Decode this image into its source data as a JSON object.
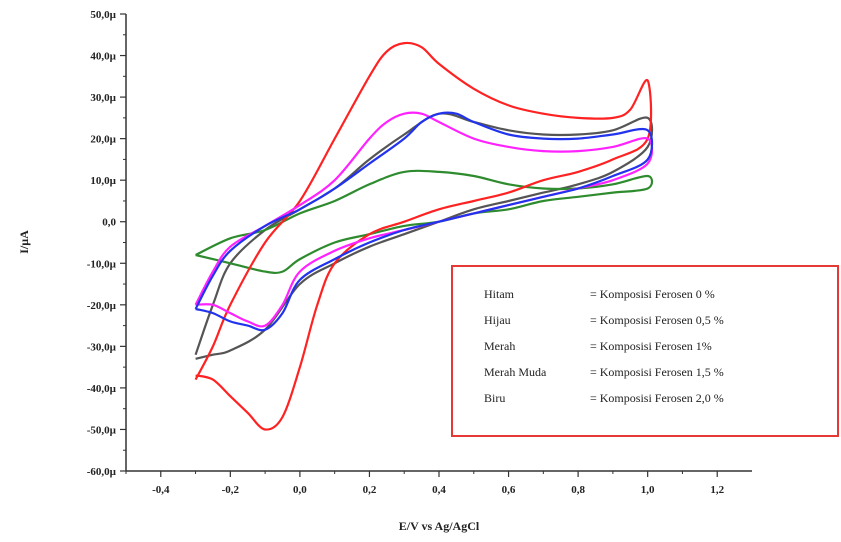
{
  "chart_data": {
    "type": "line",
    "title": "",
    "xlabel": "E/V vs Ag/AgCl",
    "ylabel": "I/µA",
    "xlim": [
      -0.5,
      1.3
    ],
    "ylim": [
      -60,
      50
    ],
    "x_ticks": [
      {
        "value": -0.4,
        "label": "-0,4"
      },
      {
        "value": -0.2,
        "label": "-0,2"
      },
      {
        "value": 0.0,
        "label": "0,0"
      },
      {
        "value": 0.2,
        "label": "0,2"
      },
      {
        "value": 0.4,
        "label": "0,4"
      },
      {
        "value": 0.6,
        "label": "0,6"
      },
      {
        "value": 0.8,
        "label": "0,8"
      },
      {
        "value": 1.0,
        "label": "1,0"
      },
      {
        "value": 1.2,
        "label": "1,2"
      }
    ],
    "y_ticks": [
      {
        "value": 50,
        "label": "50,0µ"
      },
      {
        "value": 40,
        "label": "40,0µ"
      },
      {
        "value": 30,
        "label": "30,0µ"
      },
      {
        "value": 20,
        "label": "20,0µ"
      },
      {
        "value": 10,
        "label": "10,0µ"
      },
      {
        "value": 0,
        "label": "0,0"
      },
      {
        "value": -10,
        "label": "-10,0µ"
      },
      {
        "value": -20,
        "label": "-20,0µ"
      },
      {
        "value": -30,
        "label": "-30,0µ"
      },
      {
        "value": -40,
        "label": "-40,0µ"
      },
      {
        "value": -50,
        "label": "-50,0µ"
      },
      {
        "value": -60,
        "label": "-60,0µ"
      }
    ],
    "legend": {
      "position": "bottom-right",
      "border_color": "#e53935",
      "entries": [
        {
          "name": "Hitam",
          "desc": "= Komposisi Ferosen 0 %"
        },
        {
          "name": "Hijau",
          "desc": "= Komposisi Ferosen 0,5 %"
        },
        {
          "name": "Merah",
          "desc": "= Komposisi Ferosen 1%"
        },
        {
          "name": "Merah Muda",
          "desc": "= Komposisi Ferosen 1,5 %"
        },
        {
          "name": "Biru",
          "desc": "= Komposisi Ferosen 2,0 %"
        }
      ]
    },
    "series": [
      {
        "color": "#555555",
        "x": [
          -0.3,
          -0.25,
          -0.2,
          -0.1,
          0.0,
          0.1,
          0.2,
          0.3,
          0.4,
          0.5,
          0.6,
          0.7,
          0.8,
          0.9,
          1.0,
          1.0,
          0.9,
          0.8,
          0.7,
          0.6,
          0.5,
          0.4,
          0.3,
          0.2,
          0.1,
          0.0,
          -0.1,
          -0.2,
          -0.25,
          -0.3
        ],
        "y": [
          -32,
          -20,
          -10,
          -2,
          3,
          8,
          15,
          21,
          26,
          24,
          22,
          21,
          21,
          22,
          25,
          18,
          12,
          9,
          7,
          5,
          3,
          0,
          -3,
          -6,
          -10,
          -15,
          -26,
          -31,
          -32,
          -33
        ]
      },
      {
        "color": "#2e8b2e",
        "x": [
          -0.3,
          -0.2,
          -0.1,
          0.0,
          0.1,
          0.2,
          0.3,
          0.4,
          0.5,
          0.6,
          0.7,
          0.8,
          0.9,
          1.0,
          1.0,
          0.9,
          0.8,
          0.7,
          0.6,
          0.5,
          0.4,
          0.3,
          0.2,
          0.1,
          0.0,
          -0.05,
          -0.1,
          -0.2,
          -0.3
        ],
        "y": [
          -8,
          -4,
          -2,
          2,
          5,
          9,
          12,
          12,
          11,
          9,
          8,
          8,
          9,
          11,
          8,
          7,
          6,
          5,
          3,
          2,
          0,
          -1,
          -3,
          -5,
          -9,
          -12,
          -12,
          -10,
          -8
        ]
      },
      {
        "color": "#ff2222",
        "x": [
          -0.3,
          -0.25,
          -0.2,
          -0.1,
          0.0,
          0.1,
          0.2,
          0.25,
          0.3,
          0.35,
          0.4,
          0.5,
          0.6,
          0.7,
          0.8,
          0.9,
          0.95,
          1.0,
          1.0,
          0.9,
          0.8,
          0.7,
          0.6,
          0.5,
          0.4,
          0.3,
          0.2,
          0.1,
          0.05,
          0.0,
          -0.05,
          -0.1,
          -0.15,
          -0.2,
          -0.25,
          -0.3
        ],
        "y": [
          -38,
          -30,
          -20,
          -5,
          5,
          20,
          35,
          41,
          43,
          42,
          38,
          32,
          28,
          26,
          25,
          25,
          27,
          34,
          20,
          15,
          12,
          10,
          7,
          5,
          3,
          0,
          -3,
          -10,
          -20,
          -35,
          -47,
          -50,
          -46,
          -42,
          -38,
          -37
        ]
      },
      {
        "color": "#ff22ff",
        "x": [
          -0.3,
          -0.25,
          -0.2,
          -0.1,
          0.0,
          0.1,
          0.2,
          0.25,
          0.3,
          0.35,
          0.4,
          0.5,
          0.6,
          0.7,
          0.8,
          0.9,
          1.0,
          1.0,
          0.9,
          0.8,
          0.7,
          0.6,
          0.5,
          0.4,
          0.3,
          0.2,
          0.1,
          0.0,
          -0.05,
          -0.1,
          -0.15,
          -0.2,
          -0.25,
          -0.3
        ],
        "y": [
          -20,
          -12,
          -6,
          -1,
          4,
          10,
          20,
          24,
          26,
          26,
          24,
          20,
          18,
          17,
          17,
          18,
          20,
          14,
          10,
          8,
          6,
          4,
          2,
          0,
          -2,
          -4,
          -7,
          -12,
          -20,
          -25,
          -24,
          -22,
          -20,
          -20
        ]
      },
      {
        "color": "#2233ee",
        "x": [
          -0.3,
          -0.25,
          -0.2,
          -0.1,
          0.0,
          0.1,
          0.2,
          0.3,
          0.35,
          0.4,
          0.45,
          0.5,
          0.6,
          0.7,
          0.8,
          0.9,
          1.0,
          1.0,
          0.9,
          0.8,
          0.7,
          0.6,
          0.5,
          0.4,
          0.3,
          0.2,
          0.1,
          0.0,
          -0.05,
          -0.1,
          -0.15,
          -0.2,
          -0.25,
          -0.3
        ],
        "y": [
          -21,
          -13,
          -7,
          -1,
          3,
          8,
          14,
          20,
          24,
          26,
          26,
          24,
          21,
          20,
          20,
          21,
          22,
          15,
          11,
          8,
          6,
          4,
          2,
          0,
          -2,
          -5,
          -9,
          -14,
          -22,
          -26,
          -25,
          -24,
          -22,
          -21
        ]
      }
    ]
  }
}
